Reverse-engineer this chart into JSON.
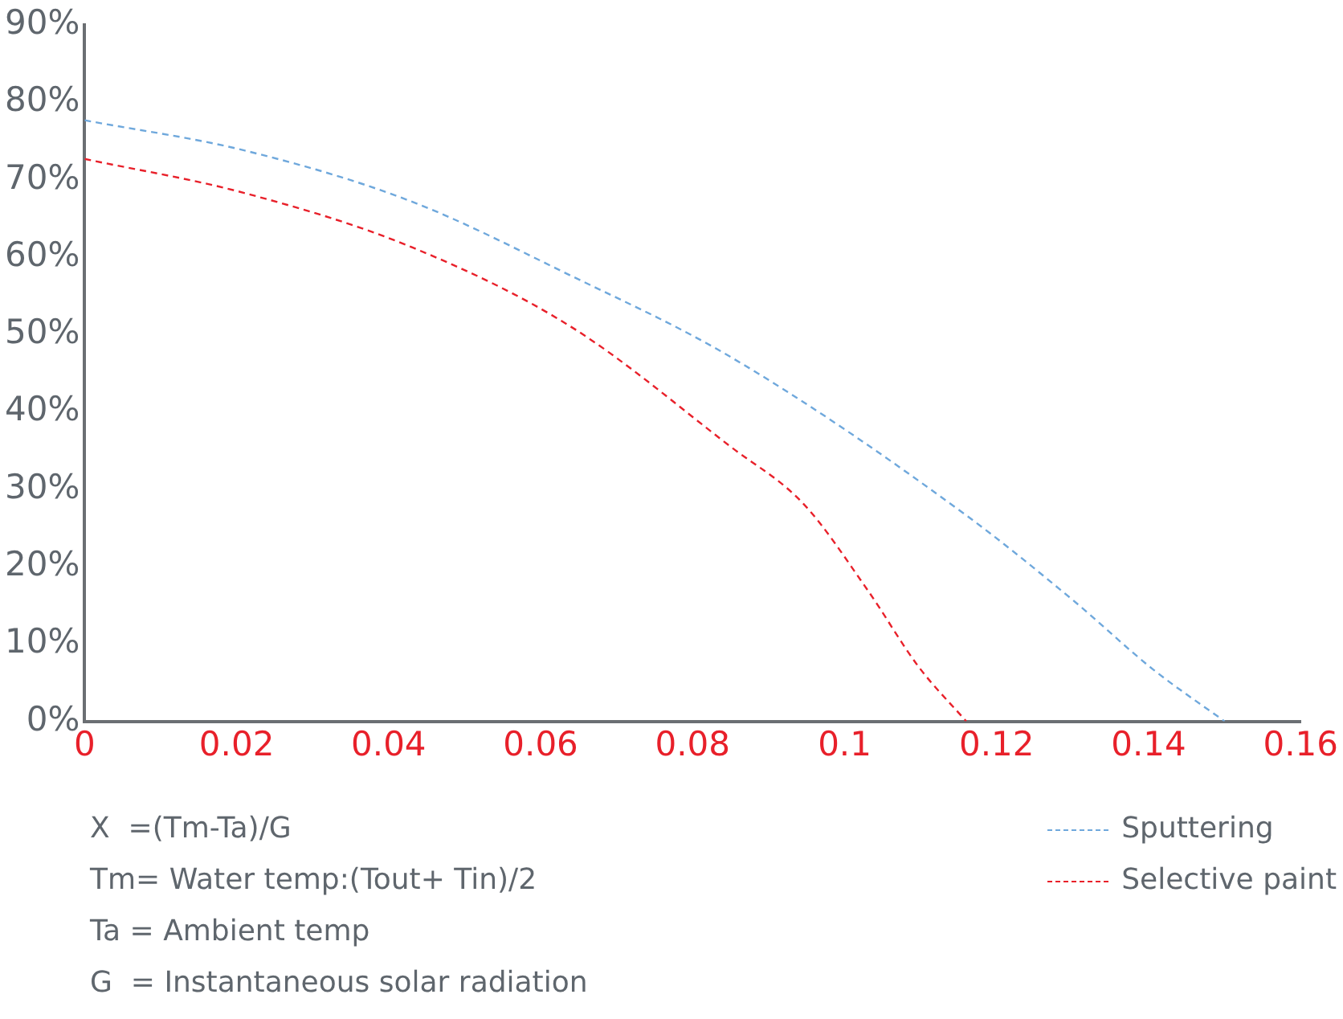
{
  "chart_data": {
    "type": "line",
    "xlim": [
      0,
      0.16
    ],
    "xticks": [
      0,
      0.02,
      0.04,
      0.06,
      0.08,
      0.1,
      0.12,
      0.14,
      0.16
    ],
    "ylim": [
      0,
      90
    ],
    "yticks": [
      {
        "value": 0,
        "label": "0%"
      },
      {
        "value": 10,
        "label": "10%"
      },
      {
        "value": 20,
        "label": "20%"
      },
      {
        "value": 30,
        "label": "30%"
      },
      {
        "value": 40,
        "label": "40%"
      },
      {
        "value": 50,
        "label": "50%"
      },
      {
        "value": 60,
        "label": "60%"
      },
      {
        "value": 70,
        "label": "70%"
      },
      {
        "value": 80,
        "label": "80%"
      },
      {
        "value": 90,
        "label": "90%"
      }
    ],
    "grid": false,
    "legend": "bottom right",
    "marker": "none",
    "line_style": "dashed",
    "series": [
      {
        "name": "Sputtering",
        "color": "#6fa8dc",
        "x": [
          0,
          0.021,
          0.043,
          0.064,
          0.085,
          0.1155,
          0.13,
          0.1406,
          0.15
        ],
        "values": [
          77.7,
          73.8,
          67.2,
          57.6,
          47.1,
          27,
          15.7,
          6.7,
          0
        ]
      },
      {
        "name": "Selective paint",
        "color": "#e8202a",
        "x": [
          0,
          0.021,
          0.043,
          0.064,
          0.085,
          0.0946,
          0.103,
          0.1097,
          0.116
        ],
        "values": [
          72.7,
          68.3,
          61.3,
          51,
          35.5,
          28.1,
          17,
          7.1,
          0
        ]
      }
    ],
    "annotations": [
      "X  =(Tm-Ta)/G",
      "Tm= Water temp:(Tout+ Tin)/2",
      "Ta = Ambient temp",
      "G  = Instantaneous solar radiation"
    ]
  }
}
